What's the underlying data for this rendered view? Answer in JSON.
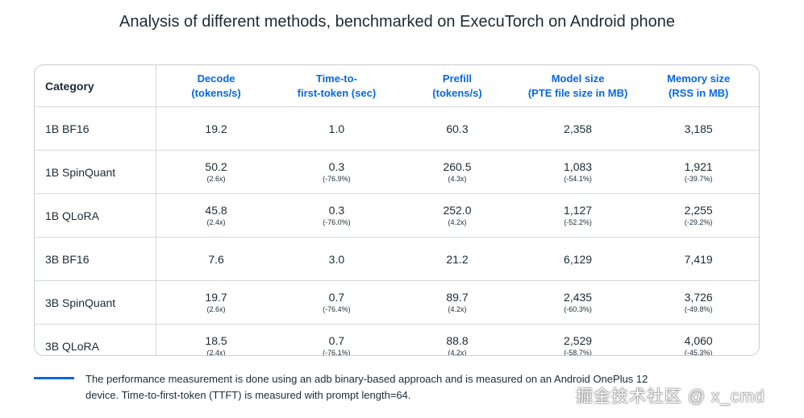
{
  "title": "Analysis of different methods, benchmarked on ExecuTorch on Android phone",
  "colors": {
    "accent": "#0668e1",
    "text": "#1c2b33",
    "border": "#c9cdd2"
  },
  "chart_data": {
    "type": "table",
    "columns": [
      {
        "line1": "Category",
        "line2": ""
      },
      {
        "line1": "Decode",
        "line2": "(tokens/s)"
      },
      {
        "line1": "Time-to-",
        "line2": "first-token (sec)"
      },
      {
        "line1": "Prefill",
        "line2": "(tokens/s)"
      },
      {
        "line1": "Model size",
        "line2": "(PTE file size in MB)"
      },
      {
        "line1": "Memory size",
        "line2": "(RSS in MB)"
      }
    ],
    "rows": [
      {
        "category": "1B BF16",
        "cells": [
          {
            "value": "19.2",
            "sub": ""
          },
          {
            "value": "1.0",
            "sub": ""
          },
          {
            "value": "60.3",
            "sub": ""
          },
          {
            "value": "2,358",
            "sub": ""
          },
          {
            "value": "3,185",
            "sub": ""
          }
        ]
      },
      {
        "category": "1B SpinQuant",
        "cells": [
          {
            "value": "50.2",
            "sub": "(2.6x)"
          },
          {
            "value": "0.3",
            "sub": "(-76.9%)"
          },
          {
            "value": "260.5",
            "sub": "(4.3x)"
          },
          {
            "value": "1,083",
            "sub": "(-54.1%)"
          },
          {
            "value": "1,921",
            "sub": "(-39.7%)"
          }
        ]
      },
      {
        "category": "1B QLoRA",
        "cells": [
          {
            "value": "45.8",
            "sub": "(2.4x)"
          },
          {
            "value": "0.3",
            "sub": "(-76.0%)"
          },
          {
            "value": "252.0",
            "sub": "(4.2x)"
          },
          {
            "value": "1,127",
            "sub": "(-52.2%)"
          },
          {
            "value": "2,255",
            "sub": "(-29.2%)"
          }
        ]
      },
      {
        "category": "3B BF16",
        "cells": [
          {
            "value": "7.6",
            "sub": ""
          },
          {
            "value": "3.0",
            "sub": ""
          },
          {
            "value": "21.2",
            "sub": ""
          },
          {
            "value": "6,129",
            "sub": ""
          },
          {
            "value": "7,419",
            "sub": ""
          }
        ]
      },
      {
        "category": "3B SpinQuant",
        "cells": [
          {
            "value": "19.7",
            "sub": "(2.6x)"
          },
          {
            "value": "0.7",
            "sub": "(-76.4%)"
          },
          {
            "value": "89.7",
            "sub": "(4.2x)"
          },
          {
            "value": "2,435",
            "sub": "(-60.3%)"
          },
          {
            "value": "3,726",
            "sub": "(-49.8%)"
          }
        ]
      },
      {
        "category": "3B QLoRA",
        "cells": [
          {
            "value": "18.5",
            "sub": "(2.4x)"
          },
          {
            "value": "0.7",
            "sub": "(-76.1%)"
          },
          {
            "value": "88.8",
            "sub": "(4.2x)"
          },
          {
            "value": "2,529",
            "sub": "(-58.7%)"
          },
          {
            "value": "4,060",
            "sub": "(-45.3%)"
          }
        ]
      }
    ]
  },
  "footnote": {
    "line1": "The performance measurement is done using an adb binary-based approach and is measured on an Android OnePlus 12",
    "line2": "device. Time-to-first-token (TTFT) is measured with prompt length=64."
  },
  "watermark": "掘金技术社区 @ x_cmd"
}
